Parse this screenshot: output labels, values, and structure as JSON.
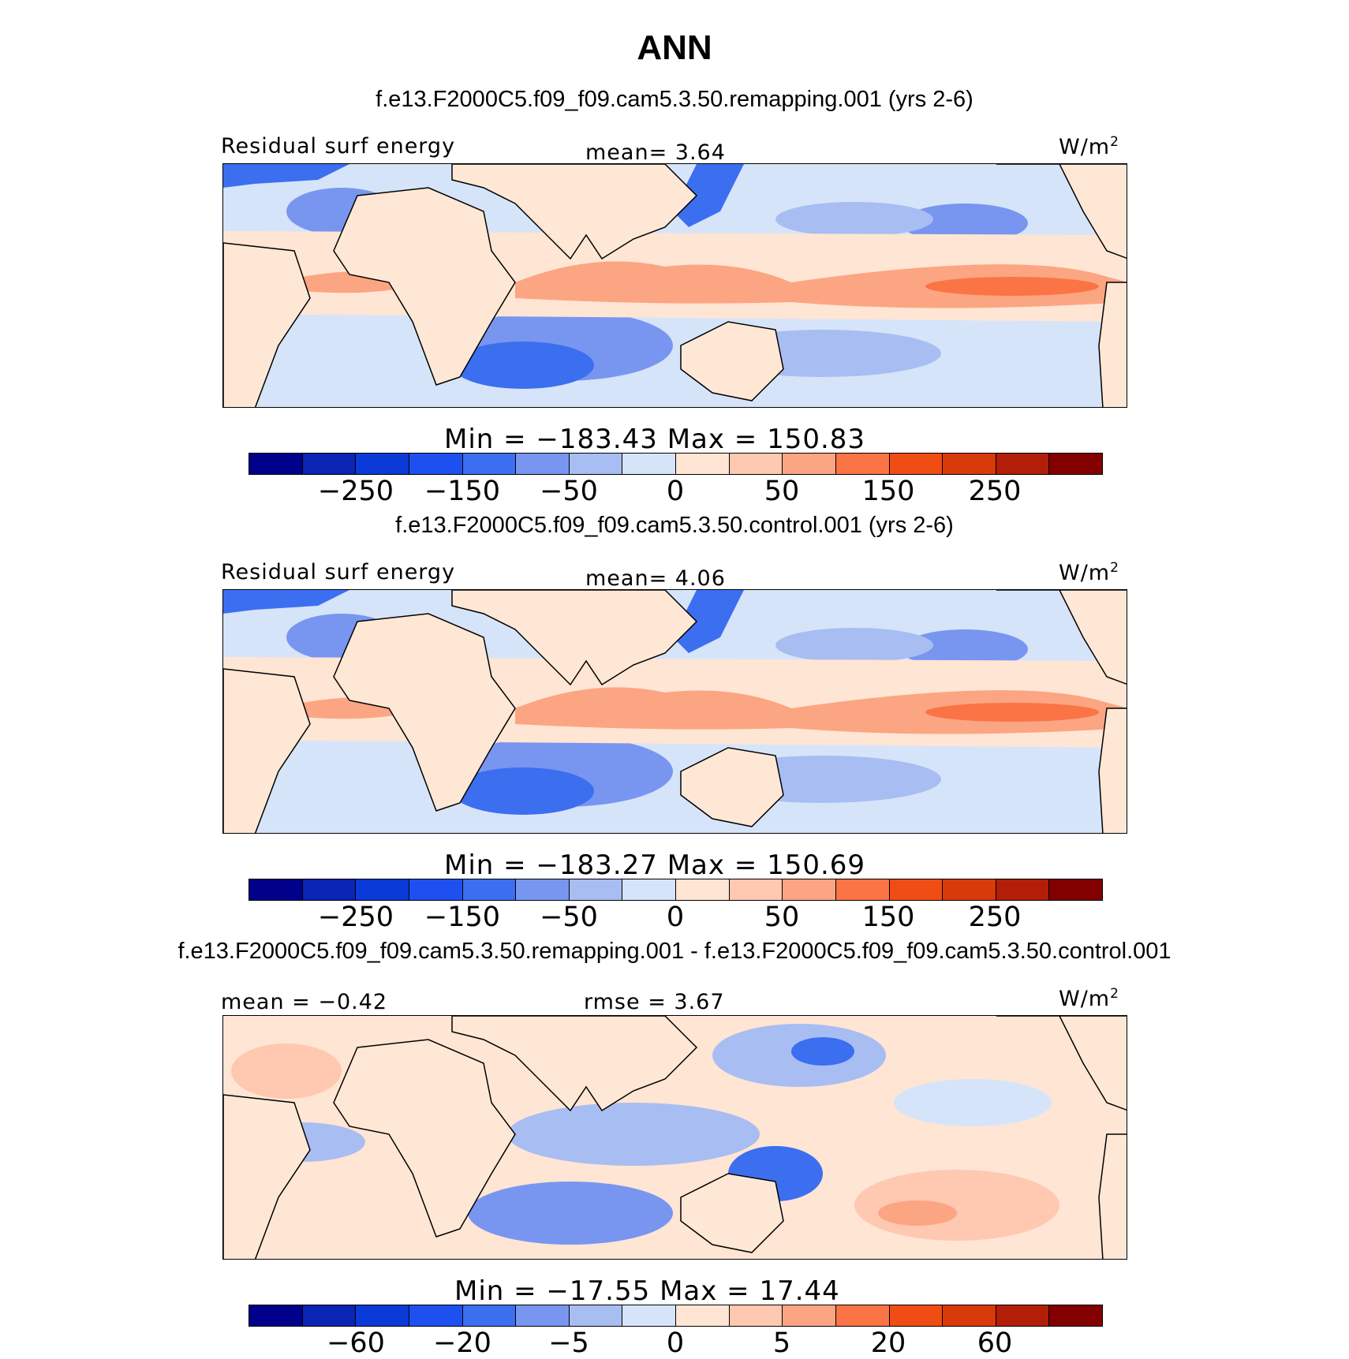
{
  "title": "ANN",
  "colorbar_colors": [
    "#00008b",
    "#0a24b4",
    "#0a3ad7",
    "#1e50f0",
    "#3c6ef0",
    "#7896f0",
    "#a8bdf2",
    "#d6e4fa",
    "#ffe5d4",
    "#ffc8b0",
    "#fca582",
    "#fa7446",
    "#f04d14",
    "#d93a0a",
    "#b21e08",
    "#820000"
  ],
  "land_color": "#fee8d5",
  "panels": [
    {
      "case_title": "f.e13.F2000C5.f09_f09.cam5.3.50.remapping.001 (yrs 2-6)",
      "left_label": "Residual surf energy",
      "center_label": "mean=   3.64",
      "units": "W/m",
      "units_sup": "2",
      "minmax": "Min = −183.43  Max = 150.83",
      "ticks": [
        "−250",
        "−150",
        "−50",
        "0",
        "50",
        "150",
        "250"
      ]
    },
    {
      "case_title": "f.e13.F2000C5.f09_f09.cam5.3.50.control.001 (yrs 2-6)",
      "left_label": "Residual surf energy",
      "center_label": "mean=   4.06",
      "units": "W/m",
      "units_sup": "2",
      "minmax": "Min = −183.27  Max = 150.69",
      "ticks": [
        "−250",
        "−150",
        "−50",
        "0",
        "50",
        "150",
        "250"
      ]
    },
    {
      "case_title": "f.e13.F2000C5.f09_f09.cam5.3.50.remapping.001 - f.e13.F2000C5.f09_f09.cam5.3.50.control.001",
      "left_label": "mean =   −0.42",
      "center_label": "rmse =    3.67",
      "units": "W/m",
      "units_sup": "2",
      "minmax": "Min = −17.55  Max =   17.44",
      "ticks": [
        "−60",
        "−20",
        "−5",
        "0",
        "5",
        "20",
        "60"
      ]
    }
  ]
}
